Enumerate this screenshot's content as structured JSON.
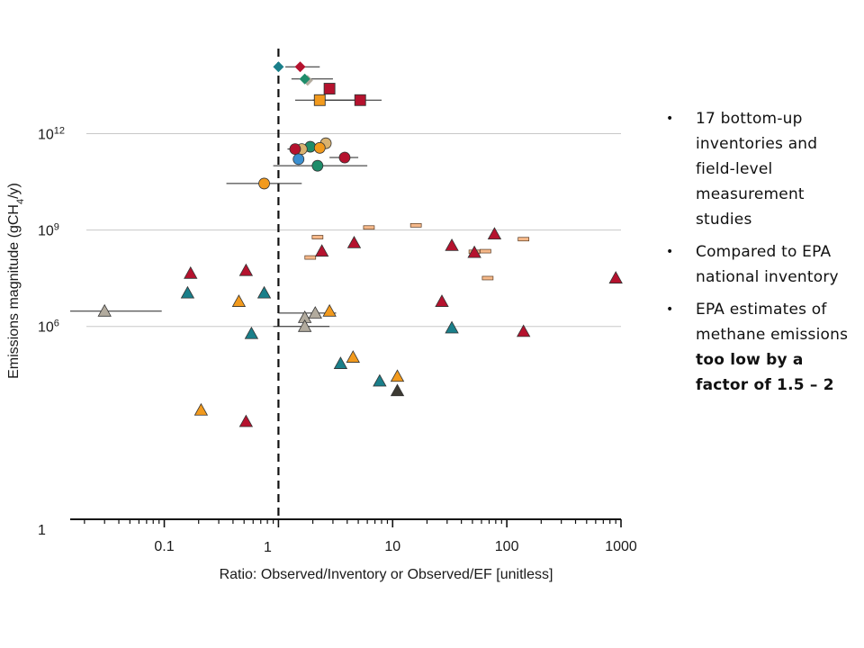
{
  "chart_data": {
    "type": "scatter",
    "xscale": "log",
    "yscale": "log",
    "xlim": [
      0.015,
      1000
    ],
    "ylim": [
      1,
      300000000000000.0
    ],
    "xlabel": "Ratio: Observed/Inventory or Observed/EF [unitless]",
    "ylabel": "Emissions magnitude (gCH",
    "ylabel_sub": "4",
    "ylabel_tail": "/y)",
    "xticks": [
      {
        "value": 0.1,
        "label": "0.1"
      },
      {
        "value": 1,
        "label": "1"
      },
      {
        "value": 10,
        "label": "10"
      },
      {
        "value": 100,
        "label": "100"
      },
      {
        "value": 1000,
        "label": "1000"
      }
    ],
    "yticks": [
      {
        "value": 1,
        "base": "1",
        "exp": ""
      },
      {
        "value": 1000000.0,
        "base": "10",
        "exp": "6"
      },
      {
        "value": 1000000000.0,
        "base": "10",
        "exp": "9"
      },
      {
        "value": 1000000000000.0,
        "base": "10",
        "exp": "12"
      }
    ],
    "gridlines_y": [
      1000000.0,
      1000000000.0,
      1000000000000.0
    ],
    "reference_line_x": 1,
    "grid": "horizontal only",
    "colors": {
      "red": "#b5122e",
      "teal": "#1a7f8a",
      "green": "#1e8c6a",
      "orange": "#f29a1d",
      "tan": "#d9b26f",
      "blue": "#3a8fd0",
      "gray": "#b2ab9e",
      "dark": "#3d3a33",
      "bar": "#f6b98a"
    },
    "points": [
      {
        "shape": "diamond",
        "color": "teal",
        "x": 1.0,
        "y": 120000000000000.0
      },
      {
        "shape": "diamond",
        "color": "red",
        "x": 1.55,
        "y": 120000000000000.0,
        "xerr": [
          1.15,
          2.3
        ]
      },
      {
        "shape": "diamond",
        "color": "gray",
        "x": 1.8,
        "y": 45000000000000.0
      },
      {
        "shape": "diamond",
        "color": "green",
        "x": 1.7,
        "y": 50000000000000.0,
        "xerr": [
          1.3,
          3.0
        ]
      },
      {
        "shape": "square",
        "color": "red",
        "x": 2.8,
        "y": 25000000000000.0
      },
      {
        "shape": "square",
        "color": "orange",
        "x": 2.3,
        "y": 11000000000000.0,
        "xerr": [
          1.4,
          5.5
        ]
      },
      {
        "shape": "square",
        "color": "red",
        "x": 5.2,
        "y": 11000000000000.0,
        "xerr": [
          2.0,
          8.0
        ]
      },
      {
        "shape": "circle",
        "color": "tan",
        "x": 2.6,
        "y": 500000000000.0
      },
      {
        "shape": "circle",
        "color": "green",
        "x": 1.9,
        "y": 390000000000.0,
        "xerr": [
          1.4,
          2.8
        ]
      },
      {
        "shape": "circle",
        "color": "orange",
        "x": 2.3,
        "y": 360000000000.0
      },
      {
        "shape": "circle",
        "color": "tan",
        "x": 1.6,
        "y": 330000000000.0
      },
      {
        "shape": "circle",
        "color": "red",
        "x": 1.4,
        "y": 330000000000.0,
        "xerr": [
          1.2,
          1.8
        ]
      },
      {
        "shape": "circle",
        "color": "red",
        "x": 3.8,
        "y": 180000000000.0,
        "xerr": [
          2.8,
          5.0
        ]
      },
      {
        "shape": "circle",
        "color": "blue",
        "x": 1.5,
        "y": 160000000000.0
      },
      {
        "shape": "circle",
        "color": "green",
        "x": 2.2,
        "y": 100000000000.0,
        "xerr": [
          0.9,
          6.0
        ]
      },
      {
        "shape": "circle",
        "color": "orange",
        "x": 0.75,
        "y": 28000000000.0,
        "xerr": [
          0.35,
          1.6
        ]
      },
      {
        "shape": "bar",
        "color": "bar",
        "x": 16,
        "y": 1400000000.0
      },
      {
        "shape": "bar",
        "color": "bar",
        "x": 6.2,
        "y": 1200000000.0
      },
      {
        "shape": "bar",
        "color": "bar",
        "x": 2.2,
        "y": 600000000.0
      },
      {
        "shape": "bar",
        "color": "bar",
        "x": 140,
        "y": 520000000.0
      },
      {
        "shape": "bar",
        "color": "bar",
        "x": 65,
        "y": 220000000.0
      },
      {
        "shape": "bar",
        "color": "bar",
        "x": 52,
        "y": 210000000.0
      },
      {
        "shape": "bar",
        "color": "bar",
        "x": 1.9,
        "y": 140000000.0
      },
      {
        "shape": "bar",
        "color": "bar",
        "x": 68,
        "y": 32000000.0
      },
      {
        "shape": "triangle",
        "color": "red",
        "x": 78,
        "y": 750000000.0
      },
      {
        "shape": "triangle",
        "color": "red",
        "x": 4.6,
        "y": 400000000.0
      },
      {
        "shape": "triangle",
        "color": "red",
        "x": 33,
        "y": 330000000.0
      },
      {
        "shape": "triangle",
        "color": "red",
        "x": 2.4,
        "y": 220000000.0
      },
      {
        "shape": "triangle",
        "color": "red",
        "x": 52,
        "y": 200000000.0
      },
      {
        "shape": "triangle",
        "color": "red",
        "x": 0.52,
        "y": 55000000.0
      },
      {
        "shape": "triangle",
        "color": "red",
        "x": 0.17,
        "y": 45000000.0
      },
      {
        "shape": "triangle",
        "color": "red",
        "x": 900,
        "y": 32000000.0
      },
      {
        "shape": "triangle",
        "color": "teal",
        "x": 0.16,
        "y": 11000000.0
      },
      {
        "shape": "triangle",
        "color": "teal",
        "x": 0.75,
        "y": 11000000.0
      },
      {
        "shape": "triangle",
        "color": "orange",
        "x": 0.45,
        "y": 6000000.0
      },
      {
        "shape": "triangle",
        "color": "red",
        "x": 27,
        "y": 6000000.0
      },
      {
        "shape": "triangle",
        "color": "gray",
        "x": 0.03,
        "y": 3000000.0,
        "xerr": [
          0.015,
          0.095
        ]
      },
      {
        "shape": "triangle",
        "color": "orange",
        "x": 2.8,
        "y": 3000000.0
      },
      {
        "shape": "triangle",
        "color": "gray",
        "x": 2.1,
        "y": 2600000.0,
        "xerr": [
          1.0,
          3.2
        ]
      },
      {
        "shape": "triangle",
        "color": "gray",
        "x": 1.7,
        "y": 1900000.0
      },
      {
        "shape": "triangle",
        "color": "gray",
        "x": 1.7,
        "y": 1000000.0,
        "xerr": [
          0.9,
          2.8
        ]
      },
      {
        "shape": "triangle",
        "color": "teal",
        "x": 33,
        "y": 900000.0
      },
      {
        "shape": "triangle",
        "color": "teal",
        "x": 0.58,
        "y": 600000.0
      },
      {
        "shape": "triangle",
        "color": "red",
        "x": 140,
        "y": 700000.0
      },
      {
        "shape": "triangle",
        "color": "orange",
        "x": 4.5,
        "y": 110000.0
      },
      {
        "shape": "triangle",
        "color": "teal",
        "x": 3.5,
        "y": 70000.0
      },
      {
        "shape": "triangle",
        "color": "teal",
        "x": 7.7,
        "y": 20000.0
      },
      {
        "shape": "triangle",
        "color": "orange",
        "x": 11,
        "y": 28000.0
      },
      {
        "shape": "triangle",
        "color": "dark",
        "x": 11,
        "y": 10000.0
      },
      {
        "shape": "triangle",
        "color": "orange",
        "x": 0.21,
        "y": 2500.0
      },
      {
        "shape": "triangle",
        "color": "red",
        "x": 0.52,
        "y": 1100.0
      }
    ]
  },
  "bullets": {
    "items": [
      {
        "text": "17 bottom-up inventories and field-level measurement studies",
        "bold": ""
      },
      {
        "text": "Compared to EPA national inventory",
        "bold": ""
      },
      {
        "text": "EPA estimates of methane emissions ",
        "bold": "too low by a factor of 1.5 – 2"
      }
    ],
    "marker": "•"
  }
}
